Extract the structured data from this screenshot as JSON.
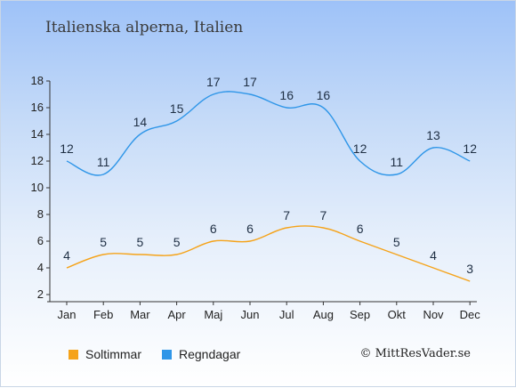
{
  "title": "Italienska alperna, Italien",
  "credit": "© MittResVader.se",
  "chart_data": {
    "type": "line",
    "categories": [
      "Jan",
      "Feb",
      "Mar",
      "Apr",
      "Maj",
      "Jun",
      "Jul",
      "Aug",
      "Sep",
      "Okt",
      "Nov",
      "Dec"
    ],
    "y_ticks": [
      2,
      4,
      6,
      8,
      10,
      12,
      14,
      16,
      18
    ],
    "ylim": [
      2,
      18
    ],
    "grid": false,
    "legend_position": "bottom-left",
    "series": [
      {
        "name": "Soltimmar",
        "color": "#f5a31a",
        "values": [
          4,
          5,
          5,
          5,
          6,
          6,
          7,
          7,
          6,
          5,
          4,
          3
        ]
      },
      {
        "name": "Regndagar",
        "color": "#2f96e8",
        "values": [
          12,
          11,
          14,
          15,
          17,
          17,
          16,
          16,
          12,
          11,
          13,
          12
        ]
      }
    ]
  }
}
